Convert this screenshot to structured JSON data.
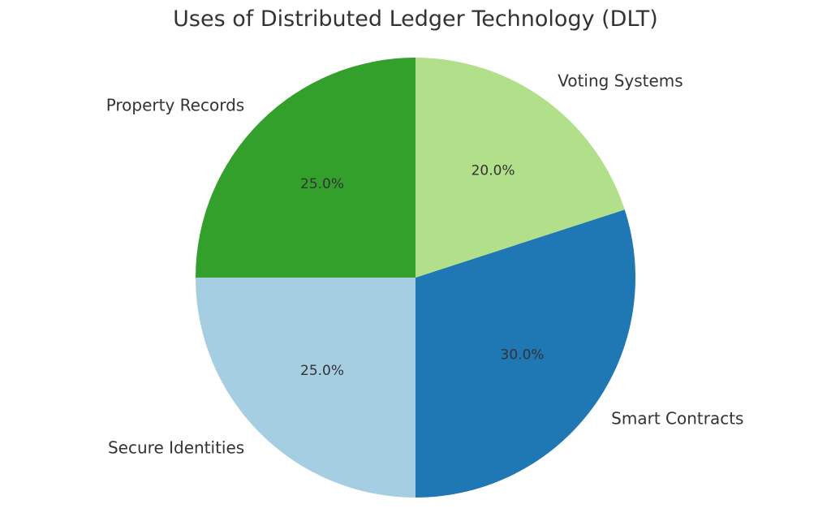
{
  "chart_data": {
    "type": "pie",
    "title": "Uses of Distributed Ledger Technology (DLT)",
    "categories": [
      "Property Records",
      "Secure Identities",
      "Smart Contracts",
      "Voting Systems"
    ],
    "values": [
      25.0,
      25.0,
      30.0,
      20.0
    ],
    "value_labels": [
      "25.0%",
      "25.0%",
      "30.0%",
      "20.0%"
    ],
    "colors": [
      "#33a02c",
      "#a6cee3",
      "#1f78b4",
      "#b2df8a"
    ],
    "start_angle_deg": 90,
    "direction": "counterclockwise",
    "legend": "none"
  }
}
